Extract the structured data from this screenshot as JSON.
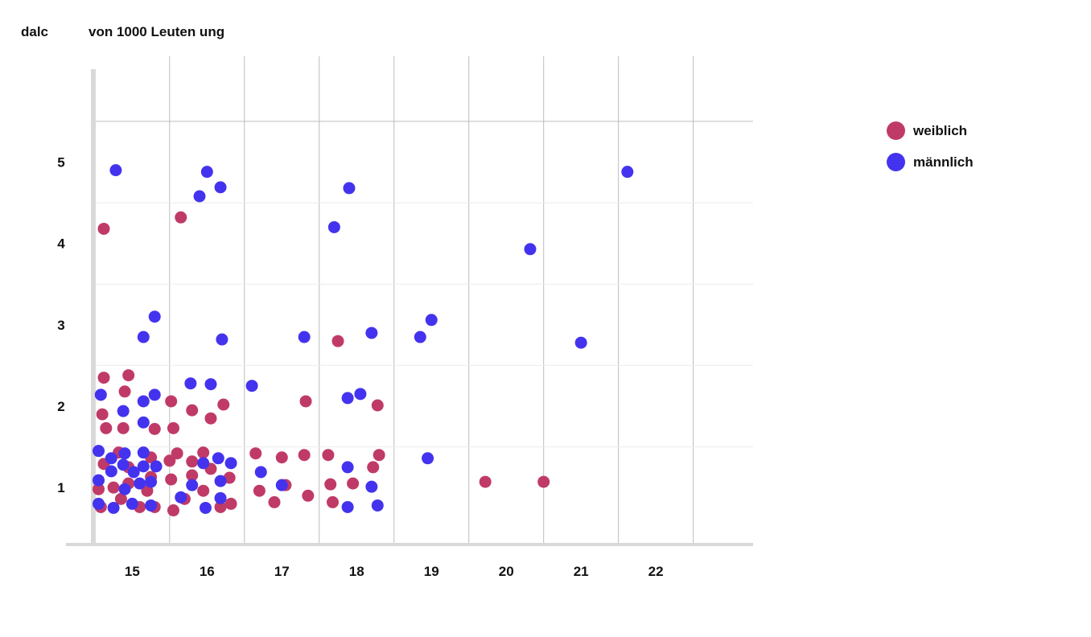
{
  "chart_data": {
    "type": "scatter",
    "title": "von 1000 Leuten ung",
    "ylabel": "dalc",
    "xlabel": "",
    "xlim": [
      14.48,
      23.3
    ],
    "ylim": [
      0.3,
      6.3
    ],
    "x_ticks": [
      15,
      16,
      17,
      18,
      19,
      20,
      21,
      22
    ],
    "y_ticks": [
      1,
      2,
      3,
      4,
      5
    ],
    "grid": true,
    "legend_position": "top-right",
    "series": [
      {
        "name": "weiblich",
        "color": "#C03A68",
        "points": [
          [
            14.62,
            4.18
          ],
          [
            14.62,
            2.35
          ],
          [
            14.95,
            2.38
          ],
          [
            14.9,
            2.18
          ],
          [
            15.52,
            2.06
          ],
          [
            15.8,
            1.95
          ],
          [
            16.22,
            2.02
          ],
          [
            14.6,
            1.9
          ],
          [
            16.05,
            1.85
          ],
          [
            14.65,
            1.73
          ],
          [
            14.88,
            1.73
          ],
          [
            15.55,
            1.73
          ],
          [
            15.3,
            1.72
          ],
          [
            14.82,
            1.43
          ],
          [
            15.6,
            1.42
          ],
          [
            15.95,
            1.43
          ],
          [
            14.62,
            1.29
          ],
          [
            14.95,
            1.25
          ],
          [
            15.25,
            1.37
          ],
          [
            15.5,
            1.33
          ],
          [
            15.8,
            1.32
          ],
          [
            16.05,
            1.23
          ],
          [
            15.25,
            1.13
          ],
          [
            15.52,
            1.1
          ],
          [
            15.8,
            1.15
          ],
          [
            16.3,
            1.12
          ],
          [
            14.55,
            0.98
          ],
          [
            14.75,
            1.0
          ],
          [
            14.95,
            1.05
          ],
          [
            14.85,
            0.86
          ],
          [
            15.2,
            0.96
          ],
          [
            15.95,
            0.96
          ],
          [
            15.7,
            0.86
          ],
          [
            14.58,
            0.76
          ],
          [
            15.1,
            0.76
          ],
          [
            15.3,
            0.76
          ],
          [
            15.55,
            0.72
          ],
          [
            16.18,
            0.76
          ],
          [
            16.32,
            0.8
          ],
          [
            15.65,
            4.32
          ],
          [
            16.65,
            1.42
          ],
          [
            17.0,
            1.37
          ],
          [
            17.3,
            1.4
          ],
          [
            17.62,
            1.4
          ],
          [
            18.3,
            1.4
          ],
          [
            18.22,
            1.25
          ],
          [
            16.7,
            0.96
          ],
          [
            17.05,
            1.03
          ],
          [
            17.65,
            1.04
          ],
          [
            17.95,
            1.05
          ],
          [
            17.35,
            0.9
          ],
          [
            16.9,
            0.82
          ],
          [
            17.68,
            0.82
          ],
          [
            17.75,
            2.8
          ],
          [
            17.32,
            2.06
          ],
          [
            18.28,
            2.01
          ],
          [
            19.72,
            1.07
          ],
          [
            20.5,
            1.07
          ]
        ]
      },
      {
        "name": "männlich",
        "color": "#4433EE",
        "points": [
          [
            14.78,
            4.9
          ],
          [
            16.0,
            4.88
          ],
          [
            16.18,
            4.69
          ],
          [
            15.9,
            4.58
          ],
          [
            17.9,
            4.68
          ],
          [
            21.62,
            4.88
          ],
          [
            17.7,
            4.2
          ],
          [
            20.32,
            3.93
          ],
          [
            15.3,
            3.1
          ],
          [
            15.15,
            2.85
          ],
          [
            16.2,
            2.82
          ],
          [
            17.3,
            2.85
          ],
          [
            18.2,
            2.9
          ],
          [
            18.85,
            2.85
          ],
          [
            19.0,
            3.06
          ],
          [
            21.0,
            2.78
          ],
          [
            15.78,
            2.28
          ],
          [
            16.05,
            2.27
          ],
          [
            16.6,
            2.25
          ],
          [
            14.58,
            2.14
          ],
          [
            15.3,
            2.14
          ],
          [
            15.15,
            2.06
          ],
          [
            14.88,
            1.94
          ],
          [
            15.15,
            1.8
          ],
          [
            17.88,
            2.1
          ],
          [
            18.05,
            2.15
          ],
          [
            14.55,
            1.45
          ],
          [
            14.72,
            1.36
          ],
          [
            14.9,
            1.42
          ],
          [
            15.15,
            1.43
          ],
          [
            16.15,
            1.36
          ],
          [
            18.95,
            1.36
          ],
          [
            14.72,
            1.2
          ],
          [
            14.88,
            1.28
          ],
          [
            15.02,
            1.19
          ],
          [
            15.15,
            1.26
          ],
          [
            15.32,
            1.26
          ],
          [
            15.95,
            1.3
          ],
          [
            16.32,
            1.3
          ],
          [
            17.88,
            1.25
          ],
          [
            16.72,
            1.19
          ],
          [
            14.55,
            1.09
          ],
          [
            15.1,
            1.05
          ],
          [
            15.25,
            1.07
          ],
          [
            14.9,
            0.98
          ],
          [
            16.18,
            1.08
          ],
          [
            15.8,
            1.03
          ],
          [
            17.0,
            1.03
          ],
          [
            18.2,
            1.01
          ],
          [
            14.55,
            0.8
          ],
          [
            14.75,
            0.75
          ],
          [
            15.0,
            0.8
          ],
          [
            15.25,
            0.78
          ],
          [
            15.65,
            0.88
          ],
          [
            15.98,
            0.75
          ],
          [
            16.18,
            0.87
          ],
          [
            17.88,
            0.76
          ],
          [
            18.28,
            0.78
          ]
        ]
      }
    ],
    "legend": [
      {
        "label": "weiblich",
        "color": "#C03A68"
      },
      {
        "label": "männlich",
        "color": "#4433EE"
      }
    ]
  }
}
